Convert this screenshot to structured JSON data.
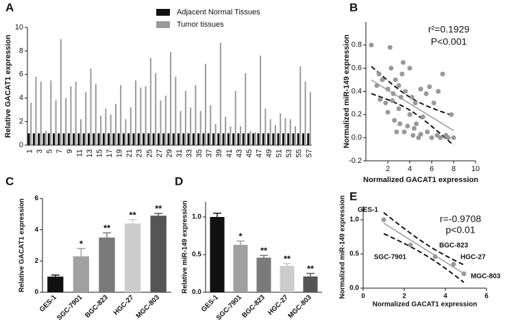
{
  "chart_data": [
    {
      "type": "bar",
      "panel_label": "A",
      "ylabel": "Relative GACAT1 expression",
      "legend": "top",
      "categories": [
        "1",
        null,
        "3",
        null,
        "5",
        null,
        "7",
        null,
        "9",
        null,
        "11",
        null,
        "13",
        null,
        "15",
        null,
        "17",
        null,
        "19",
        null,
        "21",
        null,
        "23",
        null,
        "25",
        null,
        "27",
        null,
        "29",
        null,
        "31",
        null,
        "33",
        null,
        "35",
        null,
        "37",
        null,
        "39",
        null,
        "41",
        null,
        "43",
        null,
        "45",
        null,
        "47",
        null,
        "49",
        null,
        "51",
        null,
        "53",
        null,
        "55",
        null,
        "57"
      ],
      "series": [
        {
          "name": "Adjacent Normal Tissues",
          "color": "#111111",
          "values": [
            1,
            1,
            1,
            1,
            1,
            1,
            1,
            1,
            1,
            1,
            1,
            1,
            1,
            1,
            1,
            1,
            1,
            1,
            1,
            1,
            1,
            1,
            1,
            1,
            1,
            1,
            1,
            1,
            1,
            1,
            1,
            1,
            1,
            1,
            1,
            1,
            1,
            1,
            1,
            1,
            1,
            1,
            1,
            1,
            1,
            1,
            1,
            1,
            1,
            1,
            1,
            1,
            1,
            1,
            1,
            1,
            1
          ]
        },
        {
          "name": "Tumor tissues",
          "color": "#999999",
          "values": [
            3.6,
            5.8,
            5.4,
            1.2,
            5.5,
            3.8,
            9.0,
            4.0,
            5.0,
            5.4,
            2.2,
            4.5,
            6.5,
            5.2,
            2.5,
            3.1,
            2.6,
            3.5,
            5.1,
            2.2,
            3.2,
            5.5,
            4.9,
            5.0,
            7.4,
            6.1,
            3.8,
            4.2,
            7.9,
            5.8,
            2.9,
            4.6,
            3.2,
            5.1,
            2.9,
            6.9,
            3.4,
            1.8,
            8.7,
            2.4,
            1.6,
            4.6,
            1.6,
            6.1,
            1.2,
            1.1,
            7.6,
            3.1,
            2.2,
            1.7,
            2.7,
            2.3,
            2.2,
            1.6,
            6.7,
            5.4,
            4.5
          ]
        }
      ],
      "ylim": [
        0,
        10
      ],
      "yticks": [
        0,
        2,
        4,
        6,
        8,
        10
      ]
    },
    {
      "type": "scatter",
      "panel_label": "B",
      "xlabel": "Normalized GACAT1 expression",
      "ylabel": "Normalized miR-149 expression",
      "annotations": [
        "r²=0.1929",
        "P<0.001"
      ],
      "color": "#999999",
      "fit_line": true,
      "confidence_band": true,
      "x": [
        0.5,
        1.2,
        1.3,
        1.5,
        1.8,
        2.0,
        2.0,
        2.2,
        2.3,
        2.5,
        2.6,
        2.7,
        2.8,
        3.0,
        3.0,
        3.1,
        3.2,
        3.3,
        3.5,
        3.6,
        3.8,
        4.0,
        4.0,
        4.2,
        4.3,
        4.5,
        4.6,
        4.8,
        5.0,
        5.0,
        5.2,
        5.5,
        5.6,
        6.0,
        6.2,
        6.5,
        6.8,
        7.0,
        7.3,
        7.5,
        7.8,
        8.0,
        2.4,
        3.4,
        1.0,
        4.4,
        5.8,
        6.6
      ],
      "y": [
        0.8,
        0.55,
        0.33,
        0.5,
        0.3,
        0.42,
        0.22,
        0.78,
        0.6,
        0.38,
        0.15,
        0.5,
        0.05,
        0.45,
        0.25,
        0.12,
        0.35,
        0.55,
        0.05,
        0.4,
        0.1,
        0.6,
        0.2,
        0.35,
        0.02,
        0.3,
        0.12,
        0.0,
        0.42,
        0.03,
        0.18,
        0.38,
        0.05,
        0.0,
        0.3,
        0.02,
        0.0,
        0.55,
        0.02,
        0.0,
        0.2,
        0.0,
        0.32,
        0.65,
        0.45,
        0.08,
        0.44,
        0.4
      ],
      "xlim": [
        0,
        10
      ],
      "xticks": [
        2,
        4,
        6,
        8,
        10
      ],
      "ylim": [
        -0.2,
        1.0
      ],
      "yticks": [
        -0.2,
        {
          "value": 0,
          "label": "0.0"
        },
        0.2,
        0.4,
        0.6,
        0.8
      ]
    },
    {
      "type": "bar",
      "panel_label": "C",
      "ylabel": "Relative GACAT1 expression",
      "categories": [
        "GES-1",
        "SGC-7901",
        "BGC-823",
        "HGC-27",
        "MGC-803"
      ],
      "values": [
        1.0,
        2.3,
        3.5,
        4.4,
        4.9
      ],
      "errors": [
        0.1,
        0.5,
        0.3,
        0.25,
        0.15
      ],
      "colors": [
        "#111111",
        "#a0a0a0",
        "#7a7a7a",
        "#cccccc",
        "#555555"
      ],
      "annotations": [
        null,
        "*",
        "**",
        "**",
        "**"
      ],
      "ylim": [
        0,
        6
      ],
      "yticks": [
        0,
        2,
        4,
        6
      ]
    },
    {
      "type": "bar",
      "panel_label": "D",
      "ylabel": "Relative miR-149 expression",
      "categories": [
        "GES-1",
        "SGC-7901",
        "BGC-823",
        "HGC-27",
        "MGC-803"
      ],
      "values": [
        1.0,
        0.63,
        0.46,
        0.35,
        0.21
      ],
      "errors": [
        0.05,
        0.05,
        0.03,
        0.03,
        0.04
      ],
      "colors": [
        "#111111",
        "#a0a0a0",
        "#7a7a7a",
        "#cccccc",
        "#555555"
      ],
      "annotations": [
        null,
        "*",
        "**",
        "**",
        "**"
      ],
      "ylim": [
        0,
        1.2
      ],
      "yticks": [
        {
          "value": 0,
          "label": "0.0"
        },
        0.5,
        {
          "value": 1,
          "label": "1.0"
        }
      ]
    },
    {
      "type": "scatter",
      "panel_label": "E",
      "xlabel": "Normalized GACAT1 expression",
      "ylabel": "Normalized miR-149 expression",
      "annotations": [
        "r=-0.9708",
        "p<0.01"
      ],
      "color": "#999999",
      "fit_line": true,
      "confidence_band": true,
      "point_labels": [
        "GES-1",
        "SGC-7901",
        "BGC-823",
        "HGC-27",
        "MGC-803"
      ],
      "x": [
        1.0,
        2.3,
        3.5,
        4.4,
        4.9
      ],
      "y": [
        1.0,
        0.63,
        0.46,
        0.35,
        0.21
      ],
      "xlim": [
        0,
        6
      ],
      "xticks": [
        0,
        2,
        4,
        6
      ],
      "ylim": [
        0,
        1.2
      ],
      "yticks": [
        {
          "value": 0,
          "label": "0.0"
        },
        0.5,
        {
          "value": 1,
          "label": "1.0"
        }
      ]
    }
  ]
}
